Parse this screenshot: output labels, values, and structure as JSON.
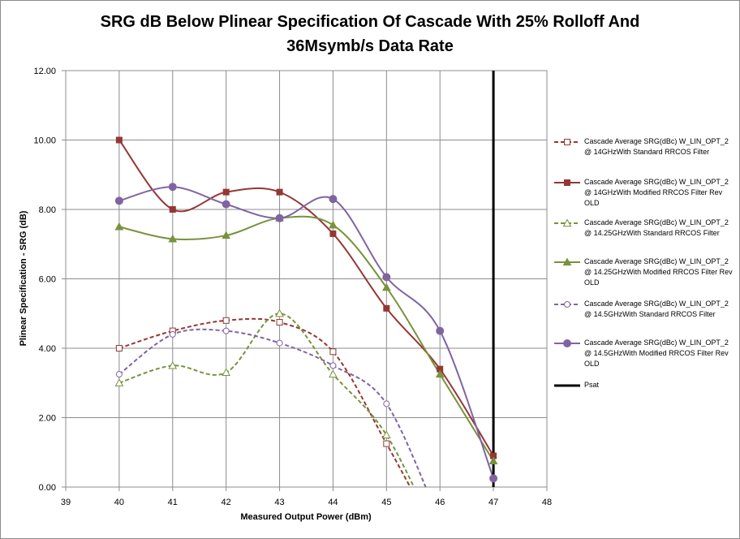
{
  "chart_data": {
    "type": "line",
    "title_lines": [
      "SRG dB Below Plinear Specification Of Cascade With 25% Rolloff And",
      "36Msymb/s Data Rate"
    ],
    "xlabel": "Measured Output Power (dBm)",
    "ylabel": "Plinear Specification  - SRG (dB)",
    "xlim": [
      39,
      48
    ],
    "ylim": [
      0,
      12
    ],
    "x_ticks": [
      39,
      40,
      41,
      42,
      43,
      44,
      45,
      46,
      47,
      48
    ],
    "y_ticks": [
      0,
      2,
      4,
      6,
      8,
      10,
      12
    ],
    "y_tick_labels": [
      "0.00",
      "2.00",
      "4.00",
      "6.00",
      "8.00",
      "10.00",
      "12.00"
    ],
    "grid": true,
    "legend_position": "right",
    "series": [
      {
        "name": "Cascade Average SRG(dBc) W_LIN_OPT_2 @ 14GHzWith Standard RRCOS Filter",
        "color": "#953735",
        "dash": true,
        "marker": "square-open",
        "x": [
          40,
          41,
          42,
          43,
          44,
          45,
          46
        ],
        "y": [
          4.0,
          4.5,
          4.8,
          4.75,
          3.9,
          1.25,
          -1.6
        ]
      },
      {
        "name": "Cascade Average SRG(dBc) W_LIN_OPT_2 @ 14GHzWith Modified RRCOS Filter Rev OLD",
        "color": "#953735",
        "dash": false,
        "marker": "square",
        "x": [
          40,
          41,
          42,
          43,
          44,
          45,
          46,
          47
        ],
        "y": [
          10.0,
          8.0,
          8.5,
          8.5,
          7.3,
          5.15,
          3.4,
          0.9
        ]
      },
      {
        "name": "Cascade Average SRG(dBc) W_LIN_OPT_2 @ 14.25GHzWith Standard RRCOS Filter",
        "color": "#77933c",
        "dash": true,
        "marker": "triangle-open",
        "x": [
          40,
          41,
          42,
          43,
          44,
          45,
          46
        ],
        "y": [
          3.0,
          3.5,
          3.3,
          5.0,
          3.25,
          1.5,
          -1.6
        ]
      },
      {
        "name": "Cascade Average SRG(dBc) W_LIN_OPT_2 @ 14.25GHzWith Modified RRCOS Filter Rev OLD",
        "color": "#77933c",
        "dash": false,
        "marker": "triangle",
        "x": [
          40,
          41,
          42,
          43,
          44,
          45,
          46,
          47
        ],
        "y": [
          7.5,
          7.15,
          7.25,
          7.75,
          7.55,
          5.75,
          3.25,
          0.75
        ]
      },
      {
        "name": "Cascade Average SRG(dBc) W_LIN_OPT_2 @ 14.5GHzWith Standard RRCOS Filter",
        "color": "#8064a2",
        "dash": true,
        "marker": "circle-open",
        "x": [
          40,
          41,
          42,
          43,
          44,
          45,
          46
        ],
        "y": [
          3.25,
          4.4,
          4.5,
          4.15,
          3.5,
          2.4,
          -1.0
        ]
      },
      {
        "name": "Cascade Average SRG(dBc) W_LIN_OPT_2 @ 14.5GHzWith Modified RRCOS Filter Rev OLD",
        "color": "#8064a2",
        "dash": false,
        "marker": "circle",
        "x": [
          40,
          41,
          42,
          43,
          44,
          45,
          46,
          47
        ],
        "y": [
          8.25,
          8.65,
          8.15,
          7.75,
          8.3,
          6.05,
          4.5,
          0.25
        ]
      },
      {
        "name": "Psat",
        "color": "#000000",
        "dash": false,
        "marker": "none",
        "x": [
          47,
          47
        ],
        "y": [
          0,
          12
        ]
      }
    ]
  }
}
